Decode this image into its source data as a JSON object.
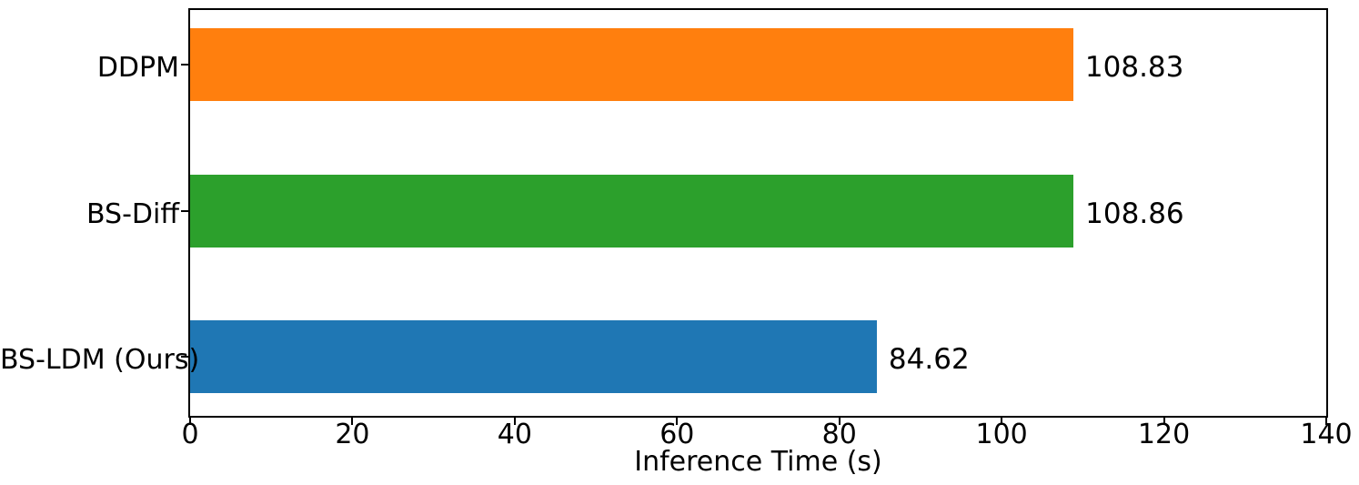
{
  "chart_data": {
    "type": "bar",
    "orientation": "horizontal",
    "title": "",
    "xlabel": "Inference Time (s)",
    "ylabel": "",
    "categories": [
      "DDPM",
      "BS-Diff",
      "BS-LDM (Ours)"
    ],
    "values": [
      108.83,
      108.86,
      84.62
    ],
    "value_labels": [
      "108.83",
      "108.86",
      "84.62"
    ],
    "bar_colors": [
      "#ff7f0e",
      "#2ca02c",
      "#1f77b4"
    ],
    "xlim": [
      0,
      140
    ],
    "x_ticks": [
      0,
      20,
      40,
      60,
      80,
      100,
      120,
      140
    ],
    "grid": false,
    "legend": null,
    "spine_color": "#000000",
    "text_color": "#000000",
    "background_color": "#ffffff"
  }
}
